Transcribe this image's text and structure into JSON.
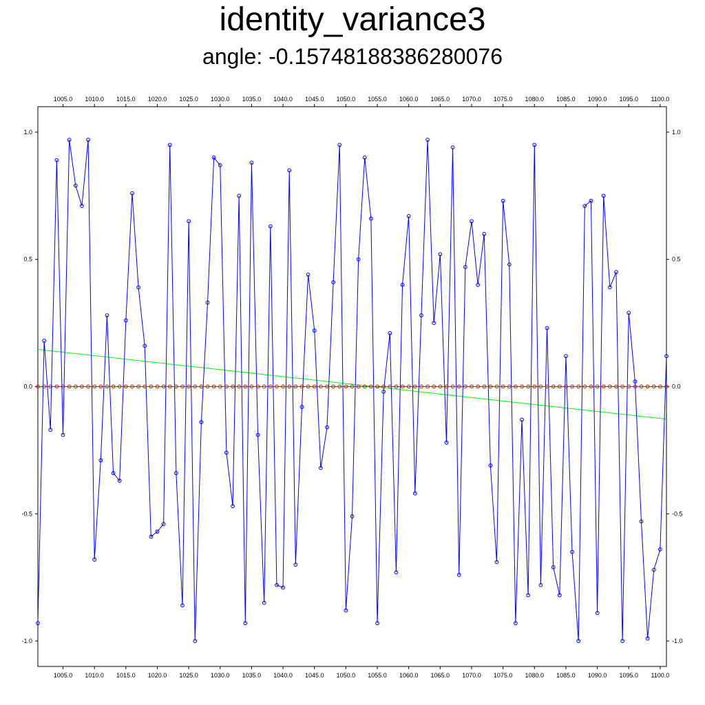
{
  "chart_data": {
    "type": "line",
    "title": "identity_variance3",
    "subtitle": "angle: -0.15748188386280076",
    "xlabel": "",
    "ylabel": "",
    "xlim": [
      1001,
      1101
    ],
    "ylim": [
      -1.1,
      1.1
    ],
    "x_ticks": [
      "1005.0",
      "1010.0",
      "1015.0",
      "1020.0",
      "1025.0",
      "1030.0",
      "1035.0",
      "1040.0",
      "1045.0",
      "1050.0",
      "1055.0",
      "1060.0",
      "1065.0",
      "1070.0",
      "1075.0",
      "1080.0",
      "1085.0",
      "1090.0",
      "1095.0",
      "1100.0"
    ],
    "y_ticks": [
      "1.0",
      "0.5",
      "0.0",
      "-0.5",
      "-1.0"
    ],
    "grid": false,
    "x_start": 1001,
    "series": [
      {
        "color": "#0000ff",
        "marker": "circle",
        "values": [
          -0.93,
          0.18,
          -0.17,
          0.89,
          -0.19,
          0.97,
          0.79,
          0.71,
          0.97,
          -0.68,
          -0.29,
          0.28,
          -0.34,
          -0.37,
          0.26,
          0.76,
          0.39,
          0.16,
          -0.59,
          -0.57,
          -0.54,
          0.95,
          -0.34,
          -0.86,
          0.65,
          -1.0,
          -0.14,
          0.33,
          0.9,
          0.87,
          -0.26,
          -0.47,
          0.75,
          -0.93,
          0.88,
          -0.19,
          -0.85,
          0.63,
          -0.78,
          -0.79,
          0.85,
          -0.7,
          -0.08,
          0.44,
          0.22,
          -0.32,
          -0.16,
          0.41,
          0.95,
          -0.88,
          -0.51,
          0.5,
          0.9,
          0.66,
          -0.93,
          -0.02,
          0.21,
          -0.73,
          0.4,
          0.67,
          -0.42,
          0.28,
          0.97,
          0.25,
          0.52,
          -0.22,
          0.94,
          -0.74,
          0.47,
          0.65,
          0.4,
          0.6,
          -0.31,
          -0.69,
          0.73,
          0.48,
          -0.93,
          -0.13,
          -0.82,
          0.95,
          -0.78,
          0.23,
          -0.71,
          -0.82,
          0.12,
          -0.65,
          -1.0,
          0.71,
          0.73,
          -0.89,
          0.75,
          0.39,
          0.45,
          -1.0,
          0.29,
          0.02,
          -0.53,
          -0.99,
          -0.72,
          -0.64,
          0.12
        ]
      },
      {
        "color": "#ff0000",
        "marker": "circle",
        "constant": 0.0
      }
    ],
    "trend_line": {
      "color": "#00ff00",
      "x": [
        1001,
        1101
      ],
      "y": [
        0.146,
        -0.128
      ]
    }
  }
}
